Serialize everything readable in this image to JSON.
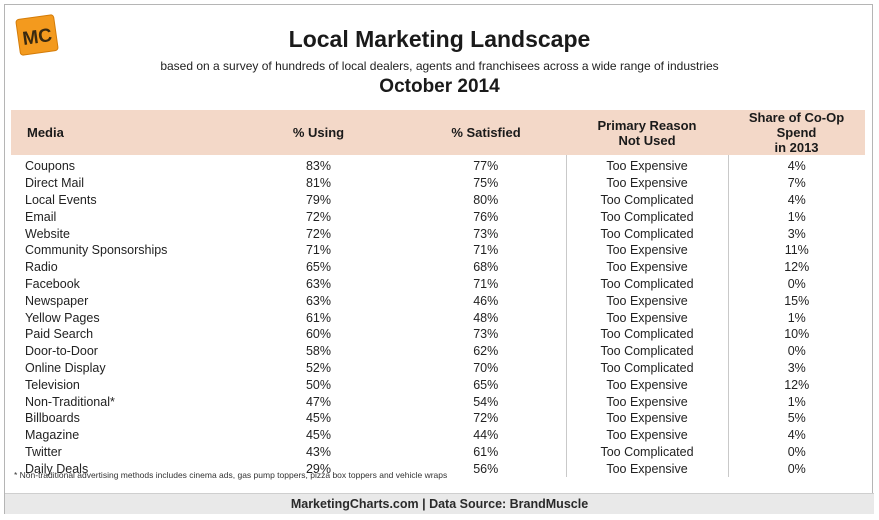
{
  "header": {
    "logo_text": "MC",
    "title": "Local Marketing Landscape",
    "subtitle": "based on a survey of hundreds of local dealers, agents and franchisees across a wide range of industries",
    "date": "October 2014"
  },
  "chart_data": {
    "type": "table",
    "title": "Local Marketing Landscape",
    "columns": [
      "Media",
      "% Using",
      "% Satisfied",
      "Primary Reason Not Used",
      "Share of Co-Op Spend in 2013"
    ],
    "column_lines": [
      [
        "Media"
      ],
      [
        "% Using"
      ],
      [
        "% Satisfied"
      ],
      [
        "Primary Reason",
        "Not Used"
      ],
      [
        "Share of Co-Op Spend",
        "in 2013"
      ]
    ],
    "rows": [
      [
        "Coupons",
        "83%",
        "77%",
        "Too Expensive",
        "4%"
      ],
      [
        "Direct Mail",
        "81%",
        "75%",
        "Too Expensive",
        "7%"
      ],
      [
        "Local Events",
        "79%",
        "80%",
        "Too Complicated",
        "4%"
      ],
      [
        "Email",
        "72%",
        "76%",
        "Too Complicated",
        "1%"
      ],
      [
        "Website",
        "72%",
        "73%",
        "Too Complicated",
        "3%"
      ],
      [
        "Community Sponsorships",
        "71%",
        "71%",
        "Too Expensive",
        "11%"
      ],
      [
        "Radio",
        "65%",
        "68%",
        "Too Expensive",
        "12%"
      ],
      [
        "Facebook",
        "63%",
        "71%",
        "Too Complicated",
        "0%"
      ],
      [
        "Newspaper",
        "63%",
        "46%",
        "Too Expensive",
        "15%"
      ],
      [
        "Yellow Pages",
        "61%",
        "48%",
        "Too Expensive",
        "1%"
      ],
      [
        "Paid Search",
        "60%",
        "73%",
        "Too Complicated",
        "10%"
      ],
      [
        "Door-to-Door",
        "58%",
        "62%",
        "Too Complicated",
        "0%"
      ],
      [
        "Online Display",
        "52%",
        "70%",
        "Too Complicated",
        "3%"
      ],
      [
        "Television",
        "50%",
        "65%",
        "Too Expensive",
        "12%"
      ],
      [
        "Non-Traditional*",
        "47%",
        "54%",
        "Too Expensive",
        "1%"
      ],
      [
        "Billboards",
        "45%",
        "72%",
        "Too Expensive",
        "5%"
      ],
      [
        "Magazine",
        "45%",
        "44%",
        "Too Expensive",
        "4%"
      ],
      [
        "Twitter",
        "43%",
        "61%",
        "Too Complicated",
        "0%"
      ],
      [
        "Daily Deals",
        "29%",
        "56%",
        "Too Expensive",
        "0%"
      ]
    ]
  },
  "footnote": "* Non-traditional advertising methods includes cinema ads, gas pump toppers, pizza box toppers and vehicle wraps",
  "footer": "MarketingCharts.com | Data Source: BrandMuscle",
  "colors": {
    "header_band": "#f3d8c8",
    "logo_orange": "#f39a1e",
    "footer_band": "#e9e9e9"
  }
}
